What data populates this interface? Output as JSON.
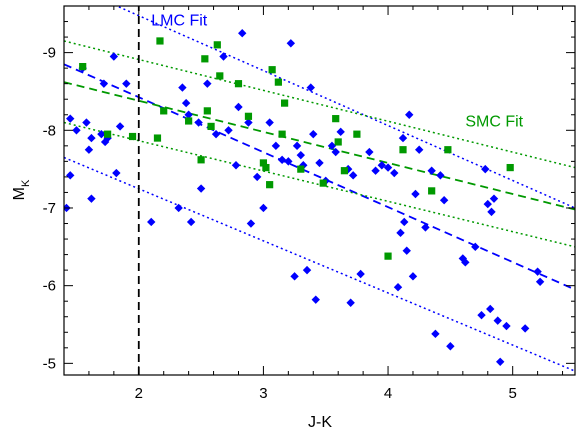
{
  "chart_data": {
    "type": "scatter",
    "xlabel": "J-K",
    "ylabel_main": "M",
    "ylabel_sub": "K",
    "xlim": [
      1.4,
      5.5
    ],
    "ylim": [
      -4.85,
      -9.6
    ],
    "y_inverted": true,
    "grid": false,
    "legend": "none",
    "x_ticks": [
      2,
      3,
      4,
      5
    ],
    "x_tick_labels": [
      "2",
      "3",
      "4",
      "5"
    ],
    "y_ticks": [
      -5,
      -6,
      -7,
      -8,
      -9
    ],
    "y_tick_labels": [
      "-5",
      "-6",
      "-7",
      "-8",
      "-9"
    ],
    "annotations": [
      {
        "text": "LMC Fit",
        "x": 2.1,
        "y": -9.35,
        "color": "#0000ff"
      },
      {
        "text": "SMC Fit",
        "x": 4.62,
        "y": -8.05,
        "color": "#009900"
      }
    ],
    "series": [
      {
        "marker": "diamond",
        "color": "#0000ff",
        "points": [
          [
            1.42,
            -7.0
          ],
          [
            1.45,
            -7.42
          ],
          [
            1.45,
            -8.15
          ],
          [
            1.5,
            -8.0
          ],
          [
            1.55,
            -8.8
          ],
          [
            1.58,
            -8.1
          ],
          [
            1.6,
            -7.75
          ],
          [
            1.62,
            -7.9
          ],
          [
            1.62,
            -7.12
          ],
          [
            1.7,
            -7.95
          ],
          [
            1.72,
            -8.6
          ],
          [
            1.73,
            -7.85
          ],
          [
            1.75,
            -7.9
          ],
          [
            1.8,
            -8.95
          ],
          [
            1.82,
            -7.45
          ],
          [
            1.85,
            -8.05
          ],
          [
            1.9,
            -8.6
          ],
          [
            2.1,
            -6.82
          ],
          [
            2.32,
            -7.0
          ],
          [
            2.35,
            -8.55
          ],
          [
            2.38,
            -8.35
          ],
          [
            2.4,
            -8.2
          ],
          [
            2.42,
            -6.82
          ],
          [
            2.48,
            -8.1
          ],
          [
            2.5,
            -7.25
          ],
          [
            2.55,
            -8.6
          ],
          [
            2.62,
            -7.95
          ],
          [
            2.68,
            -8.95
          ],
          [
            2.72,
            -8.0
          ],
          [
            2.78,
            -7.55
          ],
          [
            2.8,
            -8.3
          ],
          [
            2.83,
            -9.25
          ],
          [
            2.88,
            -8.1
          ],
          [
            2.9,
            -6.8
          ],
          [
            2.95,
            -7.4
          ],
          [
            3.0,
            -7.0
          ],
          [
            3.05,
            -8.1
          ],
          [
            3.1,
            -7.8
          ],
          [
            3.15,
            -7.62
          ],
          [
            3.2,
            -7.6
          ],
          [
            3.22,
            -9.12
          ],
          [
            3.25,
            -6.12
          ],
          [
            3.27,
            -7.8
          ],
          [
            3.3,
            -7.68
          ],
          [
            3.32,
            -7.55
          ],
          [
            3.35,
            -6.2
          ],
          [
            3.38,
            -8.55
          ],
          [
            3.4,
            -7.95
          ],
          [
            3.42,
            -5.82
          ],
          [
            3.45,
            -7.58
          ],
          [
            3.5,
            -7.35
          ],
          [
            3.55,
            -7.8
          ],
          [
            3.58,
            -7.72
          ],
          [
            3.62,
            -7.98
          ],
          [
            3.68,
            -7.5
          ],
          [
            3.7,
            -5.78
          ],
          [
            3.72,
            -7.42
          ],
          [
            3.78,
            -6.15
          ],
          [
            3.85,
            -7.72
          ],
          [
            3.9,
            -7.48
          ],
          [
            3.95,
            -7.55
          ],
          [
            4.0,
            -7.52
          ],
          [
            4.05,
            -7.45
          ],
          [
            4.08,
            -5.98
          ],
          [
            4.1,
            -6.68
          ],
          [
            4.12,
            -7.9
          ],
          [
            4.13,
            -6.82
          ],
          [
            4.15,
            -6.45
          ],
          [
            4.17,
            -8.2
          ],
          [
            4.2,
            -6.12
          ],
          [
            4.22,
            -7.18
          ],
          [
            4.25,
            -7.75
          ],
          [
            4.3,
            -6.75
          ],
          [
            4.35,
            -7.48
          ],
          [
            4.38,
            -5.38
          ],
          [
            4.42,
            -7.42
          ],
          [
            4.45,
            -7.1
          ],
          [
            4.5,
            -5.22
          ],
          [
            4.6,
            -6.35
          ],
          [
            4.62,
            -6.3
          ],
          [
            4.7,
            -6.5
          ],
          [
            4.75,
            -5.62
          ],
          [
            4.78,
            -7.5
          ],
          [
            4.8,
            -7.05
          ],
          [
            4.82,
            -5.7
          ],
          [
            4.83,
            -6.95
          ],
          [
            4.85,
            -7.12
          ],
          [
            4.88,
            -5.55
          ],
          [
            4.9,
            -5.02
          ],
          [
            4.95,
            -5.48
          ],
          [
            5.1,
            -5.45
          ],
          [
            5.2,
            -6.18
          ],
          [
            5.22,
            -6.05
          ]
        ]
      },
      {
        "marker": "square",
        "color": "#009900",
        "points": [
          [
            1.55,
            -8.82
          ],
          [
            1.75,
            -7.95
          ],
          [
            1.95,
            -7.92
          ],
          [
            2.15,
            -7.9
          ],
          [
            2.17,
            -9.15
          ],
          [
            2.2,
            -8.25
          ],
          [
            2.4,
            -8.12
          ],
          [
            2.5,
            -7.62
          ],
          [
            2.53,
            -8.92
          ],
          [
            2.55,
            -8.25
          ],
          [
            2.58,
            -8.05
          ],
          [
            2.63,
            -9.1
          ],
          [
            2.65,
            -8.7
          ],
          [
            2.8,
            -8.6
          ],
          [
            2.88,
            -8.18
          ],
          [
            3.0,
            -7.58
          ],
          [
            3.02,
            -7.52
          ],
          [
            3.05,
            -7.3
          ],
          [
            3.07,
            -8.78
          ],
          [
            3.12,
            -8.62
          ],
          [
            3.15,
            -7.95
          ],
          [
            3.17,
            -8.35
          ],
          [
            3.3,
            -7.5
          ],
          [
            3.48,
            -7.32
          ],
          [
            3.58,
            -8.15
          ],
          [
            3.6,
            -7.85
          ],
          [
            3.65,
            -7.48
          ],
          [
            3.75,
            -7.95
          ],
          [
            4.0,
            -6.38
          ],
          [
            4.12,
            -7.75
          ],
          [
            4.35,
            -7.22
          ],
          [
            4.48,
            -7.75
          ],
          [
            4.98,
            -7.52
          ]
        ]
      }
    ],
    "lines": [
      {
        "role": "lmc-fit",
        "color": "#0000ff",
        "style": "dashed",
        "x": [
          1.4,
          5.5
        ],
        "y": [
          -8.85,
          -5.95
        ]
      },
      {
        "role": "lmc-upper",
        "color": "#0000ff",
        "style": "dotted",
        "x": [
          1.4,
          5.5
        ],
        "y": [
          -9.9,
          -7.0
        ]
      },
      {
        "role": "lmc-lower",
        "color": "#0000ff",
        "style": "dotted",
        "x": [
          1.4,
          5.5
        ],
        "y": [
          -7.65,
          -4.9
        ]
      },
      {
        "role": "smc-fit",
        "color": "#009900",
        "style": "dashed",
        "x": [
          1.4,
          5.5
        ],
        "y": [
          -8.62,
          -6.98
        ]
      },
      {
        "role": "smc-upper",
        "color": "#009900",
        "style": "dotted",
        "x": [
          1.4,
          5.5
        ],
        "y": [
          -9.15,
          -7.52
        ]
      },
      {
        "role": "smc-lower",
        "color": "#009900",
        "style": "dotted",
        "x": [
          1.4,
          5.5
        ],
        "y": [
          -8.1,
          -6.5
        ]
      },
      {
        "role": "cut",
        "color": "#000000",
        "style": "dashed",
        "x": [
          2.0,
          2.0
        ],
        "y": [
          -4.85,
          -9.6
        ]
      }
    ]
  }
}
